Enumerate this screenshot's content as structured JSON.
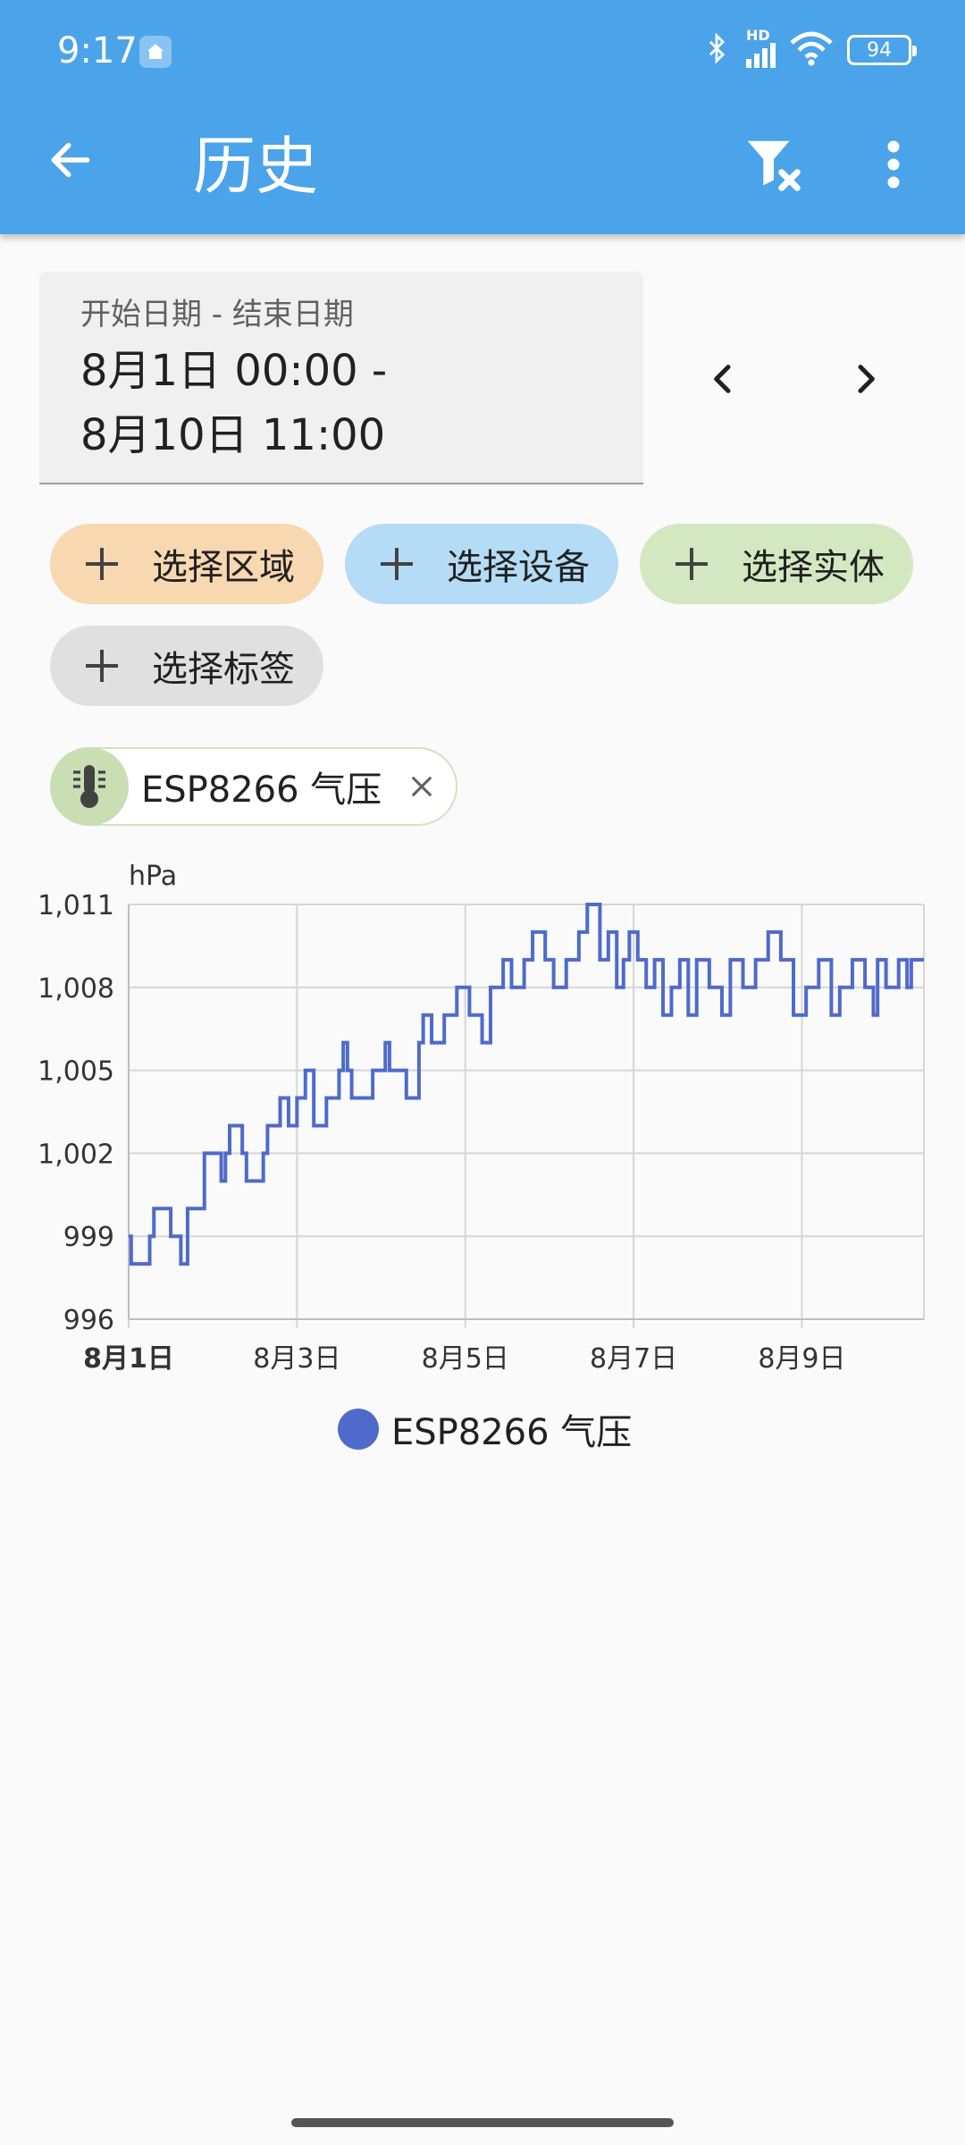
{
  "status": {
    "time": "9:17",
    "battery": "94",
    "network": "HD"
  },
  "appbar": {
    "title": "历史"
  },
  "date_range": {
    "label": "开始日期 - 结束日期",
    "start": "8月1日 00:00 -",
    "end": "8月10日 11:00"
  },
  "chips": {
    "area": "选择区域",
    "device": "选择设备",
    "entity": "选择实体",
    "label": "选择标签"
  },
  "selected_entity": {
    "name": "ESP8266 气压",
    "icon": "thermometer-icon"
  },
  "chart_data": {
    "type": "line",
    "title": "",
    "xlabel": "",
    "ylabel": "hPa",
    "ylim": [
      996,
      1011
    ],
    "xlim": [
      1,
      10.45
    ],
    "y_ticks": [
      "1,011",
      "1,008",
      "1,005",
      "1,002",
      "999",
      "996"
    ],
    "y_tick_values": [
      1011,
      1008,
      1005,
      1002,
      999,
      996
    ],
    "x_ticks": [
      "8月1日",
      "8月3日",
      "8月5日",
      "8月7日",
      "8月9日"
    ],
    "x_tick_values": [
      1,
      3,
      5,
      7,
      9
    ],
    "grid": true,
    "legend_placement": "bottom-center",
    "series": [
      {
        "name": "ESP8266 气压",
        "color": "#4e6bcb",
        "step": true,
        "x": [
          1.0,
          1.03,
          1.25,
          1.3,
          1.5,
          1.55,
          1.62,
          1.7,
          1.9,
          2.05,
          2.1,
          2.15,
          2.2,
          2.35,
          2.4,
          2.6,
          2.65,
          2.8,
          2.9,
          3.0,
          3.1,
          3.2,
          3.35,
          3.5,
          3.55,
          3.6,
          3.65,
          3.75,
          3.9,
          4.05,
          4.1,
          4.3,
          4.45,
          4.5,
          4.6,
          4.75,
          4.9,
          5.05,
          5.2,
          5.3,
          5.45,
          5.55,
          5.7,
          5.8,
          5.95,
          6.05,
          6.2,
          6.35,
          6.45,
          6.6,
          6.7,
          6.8,
          6.88,
          6.95,
          7.05,
          7.15,
          7.25,
          7.35,
          7.45,
          7.55,
          7.65,
          7.75,
          7.9,
          8.05,
          8.15,
          8.3,
          8.45,
          8.6,
          8.75,
          8.9,
          9.05,
          9.2,
          9.35,
          9.45,
          9.6,
          9.75,
          9.85,
          9.9,
          10.0,
          10.15,
          10.25,
          10.3,
          10.45
        ],
        "y": [
          999,
          998,
          999,
          1000,
          999,
          999,
          998,
          1000,
          1002,
          1002,
          1001,
          1002,
          1003,
          1002,
          1001,
          1002,
          1003,
          1004,
          1003,
          1004,
          1005,
          1003,
          1004,
          1005,
          1006,
          1005,
          1004,
          1004,
          1005,
          1006,
          1005,
          1004,
          1006,
          1007,
          1006,
          1007,
          1008,
          1007,
          1006,
          1008,
          1009,
          1008,
          1009,
          1010,
          1009,
          1008,
          1009,
          1010,
          1011,
          1009,
          1010,
          1008,
          1009,
          1010,
          1009,
          1008,
          1009,
          1007,
          1008,
          1009,
          1007,
          1009,
          1008,
          1007,
          1009,
          1008,
          1009,
          1010,
          1009,
          1007,
          1008,
          1009,
          1007,
          1008,
          1009,
          1008,
          1007,
          1009,
          1008,
          1009,
          1008,
          1009,
          1009
        ]
      }
    ]
  }
}
